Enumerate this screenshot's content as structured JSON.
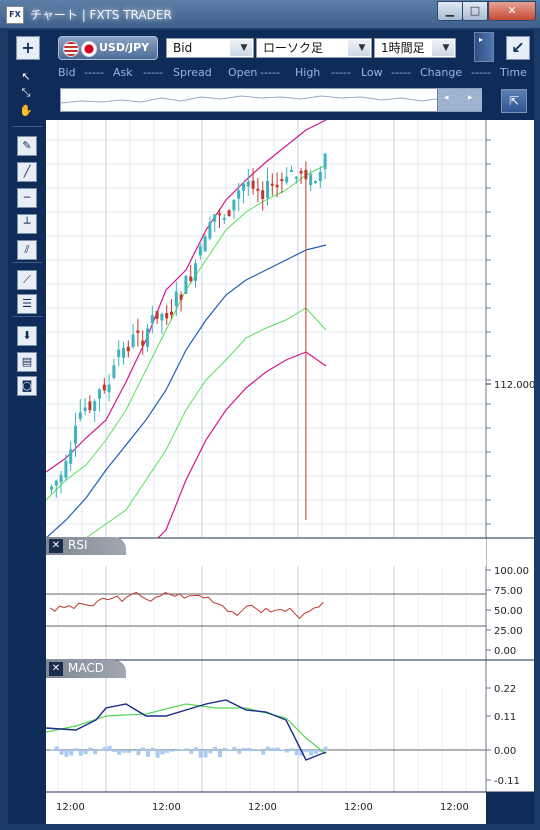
{
  "window": {
    "icon_label": "FX",
    "title": "チャート | FXTS TRADER",
    "min_glyph": "▁",
    "max_glyph": "□",
    "close_glyph": "✕"
  },
  "toolbar": {
    "add_glyph": "+",
    "pair_label": "USD/JPY",
    "price_type": "Bid",
    "chart_type": "ローソク足",
    "timeframe": "1時間足",
    "detach_glyph": "↙"
  },
  "fields": [
    "Bid",
    "-----",
    "Ask",
    "-----",
    "Spread",
    "Open",
    "-----",
    "High",
    "-----",
    "Low",
    "-----",
    "Change",
    "-----",
    "Time"
  ],
  "sidebar_tools": [
    {
      "name": "pointer-icon",
      "glyph": "↖"
    },
    {
      "name": "crosshair-icon",
      "glyph": "⤡"
    },
    {
      "name": "hand-icon",
      "glyph": "✋"
    },
    {
      "name": "magic-pen-icon",
      "glyph": "✎"
    },
    {
      "name": "trend-line-icon",
      "glyph": "╱"
    },
    {
      "name": "horizontal-line-icon",
      "glyph": "─"
    },
    {
      "name": "vertical-line-icon",
      "glyph": "┴"
    },
    {
      "name": "channel-icon",
      "glyph": "⫽"
    },
    {
      "name": "fan-icon",
      "glyph": "⟋"
    },
    {
      "name": "fibonacci-icon",
      "glyph": "☰"
    },
    {
      "name": "download-icon",
      "glyph": "⬇"
    },
    {
      "name": "list-icon",
      "glyph": "▤"
    },
    {
      "name": "camera-icon",
      "glyph": "◙"
    }
  ],
  "colors": {
    "bull": "#3fb3c0",
    "bear": "#c0392b",
    "bb_outer": "#d6168a",
    "bb_inner": "#57e057",
    "ma": "#1f5fb3",
    "rsi": "#c0392b",
    "macd": "#1a2a8a",
    "signal": "#56d656",
    "hist": "#a9c9f0"
  },
  "main": {
    "price_label": "112.000"
  },
  "rsi": {
    "label": "RSI",
    "ticks": [
      "100.00",
      "75.00",
      "50.00",
      "25.00",
      "0.00"
    ]
  },
  "macd": {
    "label": "MACD",
    "ticks": [
      "0.22",
      "0.11",
      "0.00",
      "-0.11"
    ]
  },
  "time_labels": [
    "12:00",
    "12:00",
    "12:00",
    "12:00",
    "12:00"
  ]
}
